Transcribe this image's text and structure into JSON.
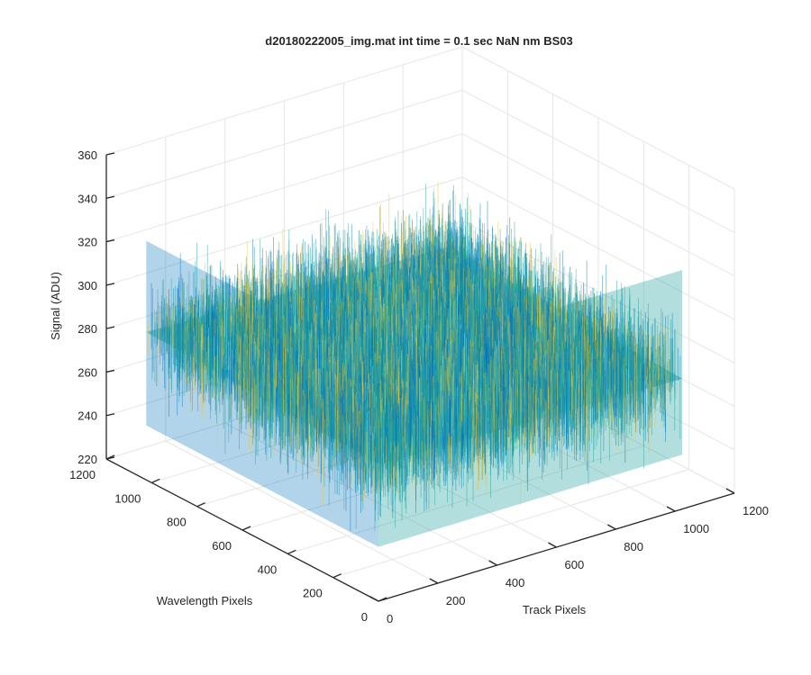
{
  "chart_data": {
    "type": "surface",
    "title": "d20180222005_img.mat int time = 0.1 sec  NaN nm BS03",
    "xlabel": "Track Pixels",
    "ylabel": "Wavelength Pixels",
    "zlabel": "Signal (ADU)",
    "xlim": [
      0,
      1200
    ],
    "ylim": [
      0,
      1200
    ],
    "zlim": [
      220,
      360
    ],
    "x_ticks": [
      "0",
      "200",
      "400",
      "600",
      "800",
      "1000",
      "1200"
    ],
    "y_ticks": [
      "0",
      "200",
      "400",
      "600",
      "800",
      "1000",
      "1200"
    ],
    "z_ticks": [
      "220",
      "240",
      "260",
      "280",
      "300",
      "320",
      "340",
      "360"
    ],
    "grid": true,
    "colormap": "parula",
    "surface_extent": {
      "x": [
        0,
        1024
      ],
      "y": [
        0,
        1024
      ]
    },
    "signal_mean": 285,
    "signal_noise_range": [
      240,
      340
    ],
    "corner_levels": {
      "x0_y0": 283,
      "x1_y0": 280,
      "x0_y1": 288,
      "x1_y1": 285
    },
    "colors": {
      "low": "#0072bd",
      "mid": "#21a3a0",
      "high": "#e8c53a",
      "axis": "#262626",
      "grid": "#e6e6e6"
    }
  }
}
